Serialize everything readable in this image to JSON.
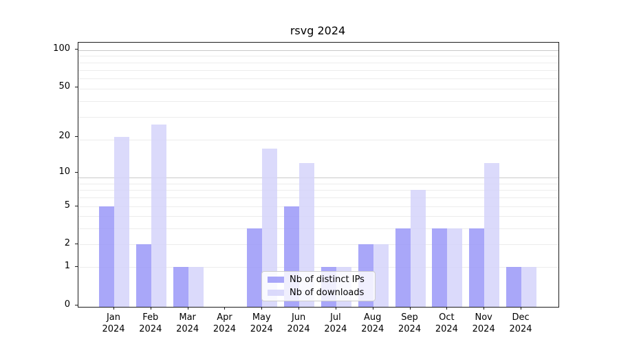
{
  "chart_data": {
    "type": "bar",
    "title": "rsvg 2024",
    "categories": [
      "Jan",
      "Feb",
      "Mar",
      "Apr",
      "May",
      "Jun",
      "Jul",
      "Aug",
      "Sep",
      "Oct",
      "Nov",
      "Dec"
    ],
    "category_year": "2024",
    "series": [
      {
        "name": "Nb of distinct IPs",
        "color": "rgba(154,152,248,0.85)",
        "values": [
          5,
          2,
          1,
          0,
          3,
          5,
          1,
          2,
          3,
          3,
          3,
          1
        ]
      },
      {
        "name": "Nb of downloads",
        "color": "rgba(213,212,250,0.85)",
        "values": [
          20,
          25,
          1,
          0,
          16,
          12,
          1,
          2,
          7,
          3,
          12,
          1
        ]
      }
    ],
    "yscale": "log10(1+x)",
    "yticks": [
      0,
      1,
      2,
      5,
      10,
      20,
      50,
      100
    ],
    "ylim": [
      0,
      113
    ],
    "grid": true,
    "legend_position": "lower center",
    "colors": {
      "major_grid": "#c9c9c9",
      "minor_grid": "#ececec",
      "spine": "#1a1a1a"
    }
  }
}
